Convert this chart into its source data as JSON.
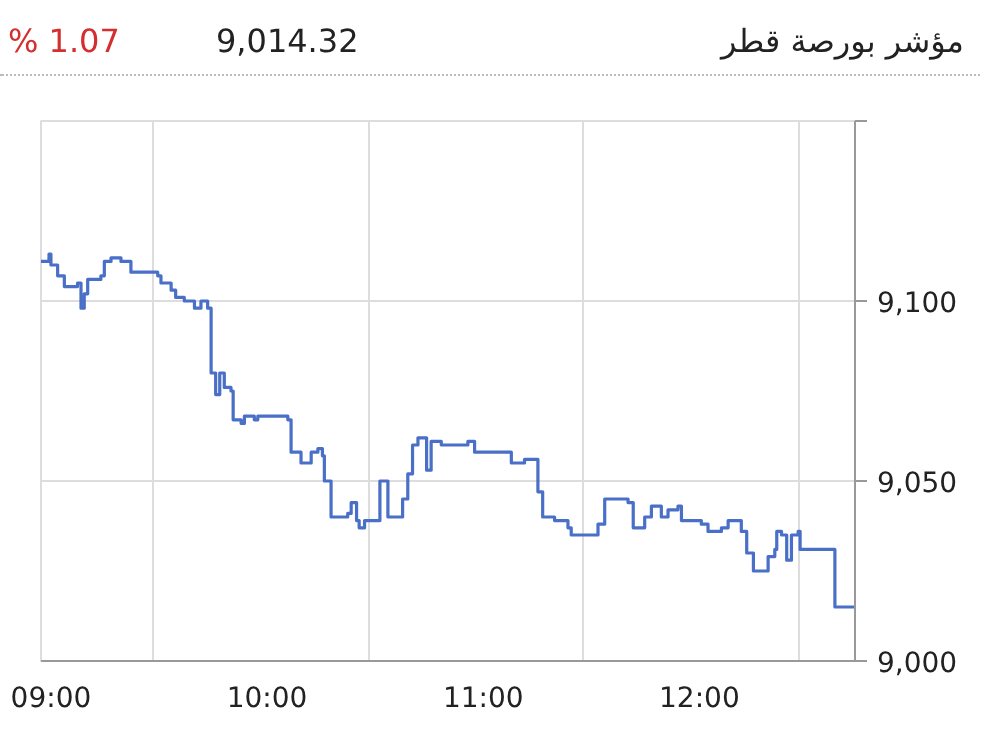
{
  "chart_data": {
    "type": "step",
    "title": "مؤشر بورصة قطر",
    "annotations": [
      "% 1.07",
      "9,014.32"
    ],
    "x": [
      8.954,
      8.969,
      8.991,
      9.0,
      9.031,
      9.062,
      9.077,
      9.123,
      9.139,
      9.154,
      9.17,
      9.231,
      9.247,
      9.278,
      9.324,
      9.37,
      9.448,
      9.494,
      9.509,
      9.556,
      9.577,
      9.617,
      9.648,
      9.664,
      9.694,
      9.725,
      9.741,
      9.762,
      9.781,
      9.802,
      9.833,
      9.843,
      9.88,
      9.895,
      9.941,
      9.957,
      10.096,
      10.111,
      10.157,
      10.188,
      10.204,
      10.235,
      10.256,
      10.265,
      10.287,
      10.296,
      10.343,
      10.373,
      10.389,
      10.414,
      10.426,
      10.451,
      10.497,
      10.522,
      10.552,
      10.559,
      10.614,
      10.627,
      10.651,
      10.673,
      10.698,
      10.728,
      10.738,
      10.759,
      10.806,
      10.929,
      10.96,
      11.114,
      11.13,
      11.176,
      11.191,
      11.231,
      11.253,
      11.275,
      11.33,
      11.392,
      11.407,
      11.5,
      11.531,
      11.562,
      11.593,
      11.67,
      11.694,
      11.747,
      11.778,
      11.824,
      11.855,
      11.901,
      11.917,
      11.963,
      12.009,
      12.04,
      12.102,
      12.133,
      12.194,
      12.219,
      12.25,
      12.287,
      12.318,
      12.349,
      12.358,
      12.38,
      12.404,
      12.426,
      12.457,
      12.466,
      12.627,
      12.72
    ],
    "series": [
      {
        "color": "#4a6fc7",
        "values": [
          9111,
          9111,
          9113,
          9110,
          9107,
          9104,
          9104,
          9105,
          9098,
          9102,
          9106,
          9107,
          9111,
          9112,
          9111,
          9108,
          9108,
          9107,
          9105,
          9103,
          9101,
          9100,
          9100,
          9098,
          9100,
          9098,
          9080,
          9074,
          9080,
          9076,
          9075,
          9067,
          9066,
          9068,
          9067,
          9068,
          9067,
          9058,
          9055,
          9055,
          9058,
          9059,
          9057,
          9050,
          9050,
          9040,
          9040,
          9041,
          9044,
          9039,
          9037,
          9039,
          9039,
          9050,
          9050,
          9040,
          9040,
          9045,
          9052,
          9060,
          9062,
          9062,
          9053,
          9061,
          9060,
          9061,
          9058,
          9058,
          9055,
          9055,
          9056,
          9056,
          9047,
          9040,
          9039,
          9037,
          9035,
          9035,
          9038,
          9045,
          9045,
          9044,
          9037,
          9040,
          9043,
          9040,
          9042,
          9043,
          9039,
          9039,
          9038,
          9036,
          9037,
          9039,
          9036,
          9030,
          9025,
          9025,
          9029,
          9031,
          9036,
          9035,
          9028,
          9035,
          9036,
          9031,
          9015,
          9015
        ]
      }
    ],
    "xlim": [
      8.954,
      12.72
    ],
    "xticks": [
      {
        "value": 9,
        "label": "09:00"
      },
      {
        "value": 9.47,
        "label": null
      },
      {
        "value": 10,
        "label": "10:00"
      },
      {
        "value": 10.47,
        "label": null
      },
      {
        "value": 11,
        "label": "11:00"
      },
      {
        "value": 11.46,
        "label": null
      },
      {
        "value": 12,
        "label": "12:00"
      },
      {
        "value": 12.46,
        "label": null
      }
    ],
    "ylim": [
      9000,
      9150
    ],
    "yticks": [
      {
        "value": 9000,
        "label": "9,000"
      },
      {
        "value": 9050,
        "label": "9,050"
      },
      {
        "value": 9100,
        "label": "9,100"
      },
      {
        "value": 9150,
        "label": null
      }
    ],
    "grid": true
  }
}
